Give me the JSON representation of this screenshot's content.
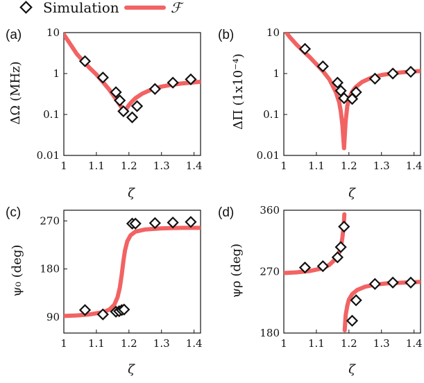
{
  "legend": {
    "markers_label": "Simulation",
    "curve_label": "ℱ",
    "curve_color": "#f26363"
  },
  "chart_data": [
    {
      "panel": "(a)",
      "type": "scatter",
      "ylabel": "ΔΩ (MHz)",
      "xlabel": "ζ",
      "yscale": "log",
      "xlim": [
        1,
        1.42
      ],
      "ylim": [
        0.01,
        10
      ],
      "xticks": [
        "1",
        "1.1",
        "1.2",
        "1.3",
        "1.4"
      ],
      "yticks": [
        "0.01",
        "0.1",
        "1",
        "10"
      ],
      "simulation": {
        "x": [
          1.065,
          1.12,
          1.16,
          1.172,
          1.183,
          1.21,
          1.225,
          1.28,
          1.335,
          1.39
        ],
        "y": [
          2.0,
          0.8,
          0.35,
          0.22,
          0.12,
          0.085,
          0.16,
          0.42,
          0.6,
          0.72
        ]
      },
      "fit": {
        "x": [
          1.0,
          1.02,
          1.04,
          1.06,
          1.08,
          1.1,
          1.12,
          1.14,
          1.16,
          1.17,
          1.18,
          1.185,
          1.19,
          1.2,
          1.21,
          1.22,
          1.24,
          1.27,
          1.3,
          1.33,
          1.36,
          1.4,
          1.42
        ],
        "y": [
          9.0,
          5.2,
          3.0,
          2.0,
          1.35,
          0.95,
          0.62,
          0.4,
          0.24,
          0.18,
          0.14,
          0.125,
          0.13,
          0.17,
          0.21,
          0.25,
          0.32,
          0.41,
          0.48,
          0.53,
          0.57,
          0.61,
          0.63
        ]
      }
    },
    {
      "panel": "(b)",
      "type": "scatter",
      "ylabel": "ΔΠ (1x10⁻⁴)",
      "xlabel": "ζ",
      "yscale": "log",
      "xlim": [
        1,
        1.42
      ],
      "ylim": [
        0.01,
        10
      ],
      "xticks": [
        "1",
        "1.1",
        "1.2",
        "1.3",
        "1.4"
      ],
      "yticks": [
        "0.01",
        "0.1",
        "1",
        "10"
      ],
      "simulation": {
        "x": [
          1.065,
          1.12,
          1.165,
          1.175,
          1.185,
          1.21,
          1.222,
          1.28,
          1.335,
          1.39
        ],
        "y": [
          4.0,
          1.5,
          0.6,
          0.38,
          0.25,
          0.24,
          0.35,
          0.75,
          1.0,
          1.1
        ]
      },
      "fit": {
        "x": [
          1.0,
          1.02,
          1.04,
          1.06,
          1.08,
          1.1,
          1.12,
          1.14,
          1.16,
          1.17,
          1.175,
          1.18,
          1.183,
          1.185,
          1.187,
          1.19,
          1.195,
          1.2,
          1.21,
          1.22,
          1.24,
          1.27,
          1.3,
          1.34,
          1.38,
          1.42
        ],
        "y": [
          12.0,
          7.5,
          5.0,
          3.5,
          2.5,
          1.7,
          1.15,
          0.72,
          0.35,
          0.2,
          0.12,
          0.055,
          0.025,
          0.015,
          0.028,
          0.07,
          0.16,
          0.24,
          0.36,
          0.46,
          0.62,
          0.8,
          0.92,
          1.03,
          1.1,
          1.15
        ]
      }
    },
    {
      "panel": "(c)",
      "type": "scatter",
      "ylabel": "ψ₀ (deg)",
      "xlabel": "ζ",
      "yscale": "linear",
      "xlim": [
        1,
        1.42
      ],
      "ylim": [
        60,
        290
      ],
      "xticks": [
        "1",
        "1.1",
        "1.2",
        "1.3",
        "1.4"
      ],
      "yticks": [
        "90",
        "180",
        "270"
      ],
      "simulation": {
        "x": [
          1.065,
          1.12,
          1.16,
          1.17,
          1.178,
          1.185,
          1.21,
          1.22,
          1.28,
          1.335,
          1.39
        ],
        "y": [
          103,
          95,
          100,
          101,
          103,
          104,
          265,
          265,
          266,
          267,
          268
        ]
      },
      "fit": {
        "x": [
          1.0,
          1.04,
          1.08,
          1.12,
          1.14,
          1.155,
          1.165,
          1.172,
          1.178,
          1.183,
          1.188,
          1.195,
          1.205,
          1.22,
          1.25,
          1.3,
          1.36,
          1.42
        ],
        "y": [
          92,
          93,
          95,
          99,
          104,
          113,
          127,
          145,
          170,
          195,
          215,
          232,
          243,
          250,
          254,
          256,
          257,
          257
        ]
      }
    },
    {
      "panel": "(d)",
      "type": "scatter",
      "ylabel": "ψρ (deg)",
      "xlabel": "ζ",
      "yscale": "linear",
      "xlim": [
        1,
        1.42
      ],
      "ylim": [
        180,
        360
      ],
      "xticks": [
        "1",
        "1.1",
        "1.2",
        "1.3",
        "1.4"
      ],
      "yticks": [
        "180",
        "270",
        "360"
      ],
      "simulation": {
        "x": [
          1.065,
          1.12,
          1.165,
          1.175,
          1.185,
          1.21,
          1.222,
          1.28,
          1.335,
          1.39
        ],
        "y": [
          276,
          278,
          291,
          306,
          336,
          198,
          228,
          252,
          254,
          254
        ]
      },
      "fit_branches": [
        {
          "x": [
            1.0,
            1.04,
            1.08,
            1.12,
            1.14,
            1.16,
            1.17,
            1.175,
            1.18,
            1.184,
            1.186
          ],
          "y": [
            268,
            269,
            271,
            275,
            280,
            289,
            298,
            306,
            320,
            337,
            354
          ]
        },
        {
          "x": [
            1.187,
            1.19,
            1.195,
            1.2,
            1.21,
            1.225,
            1.25,
            1.28,
            1.32,
            1.37,
            1.42
          ],
          "y": [
            184,
            206,
            220,
            229,
            237,
            243,
            248,
            251,
            253,
            254,
            255
          ]
        }
      ]
    }
  ]
}
